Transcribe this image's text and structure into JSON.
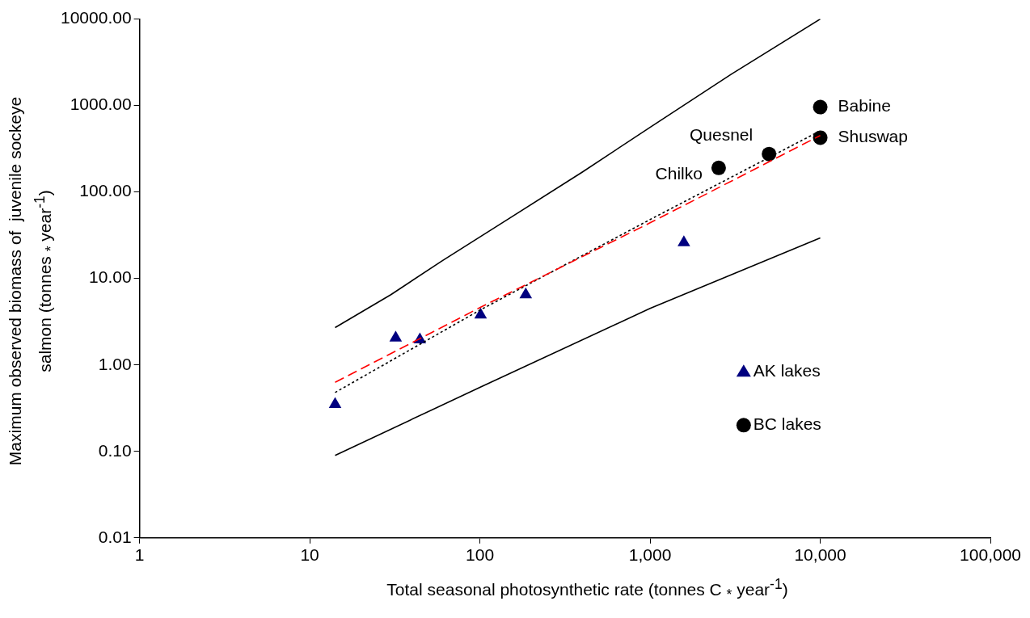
{
  "chart_data": {
    "type": "scatter",
    "xlabel": "Total seasonal photosynthetic rate (tonnes C $_{*}$ year$^{-1}$)",
    "ylabel": "Maximum observed biomass of  juvenile sockeye\nsalmon (tonnes $_{*}$ year$^{-1}$)",
    "log": "xy",
    "xlim": [
      1,
      100000
    ],
    "ylim": [
      0.01,
      10000
    ],
    "xticks": [
      1,
      10,
      100,
      {
        "value": 1000,
        "label": "1,000"
      },
      {
        "value": 10000,
        "label": "10,000"
      },
      {
        "value": 100000,
        "label": "100,000"
      }
    ],
    "yticks": [
      {
        "value": 0.01,
        "label": "0.01"
      },
      {
        "value": 0.1,
        "label": "0.10"
      },
      {
        "value": 1,
        "label": "1.00"
      },
      {
        "value": 10,
        "label": "10.00"
      },
      {
        "value": 100,
        "label": "100.00"
      },
      {
        "value": 1000,
        "label": "1000.00"
      },
      {
        "value": 10000,
        "label": "10000.00"
      }
    ],
    "legend": "bottom right",
    "series": [
      {
        "type": "line",
        "color": "#000000",
        "line_style": "solid",
        "marker": "none",
        "x": [
          14.1,
          30,
          60,
          150,
          400,
          1000,
          3000,
          10000
        ],
        "values": [
          2.7,
          6.5,
          16,
          50,
          170,
          560,
          2300,
          10000
        ]
      },
      {
        "type": "line",
        "color": "#000000",
        "line_style": "solid",
        "marker": "none",
        "x": [
          14.1,
          100,
          1000,
          10000
        ],
        "values": [
          0.09,
          0.55,
          4.5,
          29.5
        ]
      },
      {
        "type": "line",
        "color": "#ff0000",
        "line_style": "dashed",
        "marker": "none",
        "x": [
          14.1,
          100,
          1000,
          10000
        ],
        "values": [
          0.63,
          4.6,
          44,
          450
        ]
      },
      {
        "type": "line",
        "color": "#000000",
        "line_style": "dotted",
        "marker": "none",
        "x": [
          14.1,
          100,
          1000,
          10000
        ],
        "values": [
          0.48,
          4.3,
          48,
          510
        ]
      },
      {
        "name": "AK lakes",
        "type": "scatter",
        "color": "#000080",
        "marker": "triangle",
        "x": [
          14.1,
          32,
          44.4,
          101,
          186,
          1580
        ],
        "values": [
          0.35,
          2.05,
          1.96,
          3.8,
          6.5,
          26
        ]
      },
      {
        "name": "BC lakes",
        "type": "scatter",
        "color": "#000000",
        "marker": "circle",
        "x": [
          2530,
          5000,
          10000,
          10000
        ],
        "values": [
          190,
          275,
          960,
          425
        ]
      }
    ],
    "annotations": [
      {
        "text": "Chilko",
        "x": 2530,
        "y": 190
      },
      {
        "text": "Quesnel",
        "x": 5000,
        "y": 275
      },
      {
        "text": "Babine",
        "x": 10000,
        "y": 960
      },
      {
        "text": "Shuswap",
        "x": 10000,
        "y": 425
      }
    ]
  }
}
